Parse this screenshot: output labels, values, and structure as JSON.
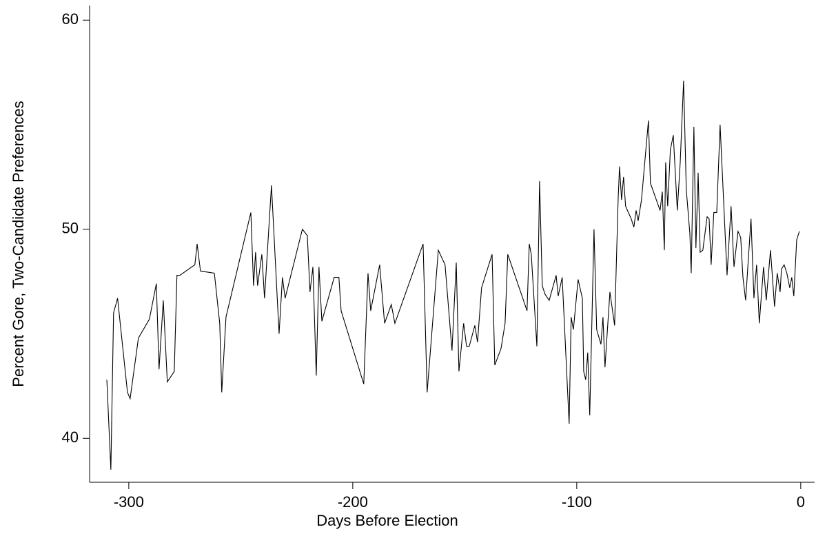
{
  "chart_data": {
    "type": "line",
    "xlabel": "Days Before Election",
    "ylabel": "Percent Gore, Two-Candidate Preferences",
    "xlim": [
      -317.5,
      6.2
    ],
    "ylim": [
      37.9,
      60.7
    ],
    "xticks": [
      -300,
      -200,
      -100,
      0
    ],
    "yticks": [
      40,
      50,
      60
    ],
    "x": [
      -309.8,
      -308,
      -306.8,
      -305,
      -300.6,
      -299.4,
      -295.7,
      -290.8,
      -287.7,
      -286.5,
      -284.6,
      -282.8,
      -279.7,
      -278.5,
      -277.2,
      -270.5,
      -269.5,
      -268,
      -261.8,
      -259.4,
      -258.5,
      -256.6,
      -245.5,
      -244.3,
      -243.4,
      -242.5,
      -240.6,
      -239.4,
      -236.3,
      -232.9,
      -231.4,
      -230.2,
      -222.5,
      -220.3,
      -219.1,
      -217.8,
      -216.3,
      -215.1,
      -213.8,
      -208.3,
      -206.2,
      -205.2,
      -195.1,
      -193.2,
      -192,
      -188,
      -185.8,
      -182.8,
      -181.2,
      -168.6,
      -166.8,
      -161.8,
      -158.8,
      -155.7,
      -153.8,
      -152.6,
      -150.5,
      -149.2,
      -148,
      -145.5,
      -144.3,
      -142.5,
      -137.8,
      -136.6,
      -133.8,
      -132,
      -130.8,
      -122.2,
      -121.2,
      -120.3,
      -117.8,
      -116.6,
      -115.4,
      -114.2,
      -112.3,
      -109.2,
      -108.3,
      -106.5,
      -103.4,
      -102.5,
      -101.5,
      -99.4,
      -97.5,
      -96.9,
      -96,
      -95.1,
      -94.2,
      -92.3,
      -91.1,
      -89.2,
      -88.3,
      -87.4,
      -85.2,
      -83.1,
      -81.5,
      -80.9,
      -80,
      -79.1,
      -78.2,
      -75.7,
      -74.5,
      -73.5,
      -72.6,
      -71.1,
      -68,
      -67.1,
      -62.8,
      -61.8,
      -60.9,
      -60.3,
      -59.4,
      -58.2,
      -56.9,
      -55.1,
      -53.8,
      -52.3,
      -51.1,
      -49.5,
      -48.9,
      -47.7,
      -46.8,
      -45.8,
      -44.9,
      -43.7,
      -41.8,
      -40.9,
      -40,
      -38.8,
      -37.5,
      -36,
      -32.9,
      -31.1,
      -29.8,
      -28,
      -26.8,
      -25.8,
      -24.6,
      -22.2,
      -20.9,
      -19.7,
      -18.5,
      -16.6,
      -15.4,
      -13.5,
      -11.7,
      -10.5,
      -9.2,
      -8.6,
      -7.4,
      -6.2,
      -4.9,
      -4,
      -3.1,
      -1.8,
      -0.6
    ],
    "series": [
      {
        "name": "Gore",
        "color": "#000000",
        "values": [
          42.8,
          38.5,
          46.0,
          46.7,
          42.2,
          41.9,
          44.8,
          45.7,
          47.4,
          43.3,
          46.6,
          42.7,
          43.2,
          47.8,
          47.8,
          48.3,
          49.3,
          48.0,
          47.9,
          45.5,
          42.2,
          45.8,
          50.8,
          47.3,
          48.9,
          47.3,
          48.8,
          46.7,
          52.1,
          45.0,
          47.7,
          46.7,
          50.0,
          49.7,
          47.0,
          48.2,
          43.0,
          48.2,
          45.6,
          47.7,
          47.7,
          46.1,
          42.6,
          47.9,
          46.1,
          48.3,
          45.5,
          46.4,
          45.5,
          49.3,
          42.2,
          49.0,
          48.3,
          44.2,
          48.4,
          43.2,
          45.5,
          44.4,
          44.4,
          45.4,
          44.6,
          47.2,
          48.8,
          43.5,
          44.3,
          45.5,
          48.8,
          46.1,
          49.3,
          48.8,
          44.4,
          52.3,
          47.3,
          46.9,
          46.6,
          47.8,
          46.8,
          47.7,
          40.7,
          45.8,
          45.2,
          47.6,
          46.7,
          43.2,
          42.8,
          44.1,
          41.1,
          50.0,
          45.2,
          44.5,
          45.8,
          43.4,
          47.0,
          45.4,
          51.5,
          53.0,
          51.4,
          52.5,
          51.1,
          50.5,
          50.1,
          50.9,
          50.4,
          51.4,
          55.2,
          52.2,
          50.9,
          51.8,
          49.0,
          53.2,
          51.1,
          53.8,
          54.5,
          50.9,
          53.2,
          57.1,
          51.9,
          49.8,
          47.9,
          54.9,
          49.1,
          52.7,
          48.9,
          49.0,
          50.6,
          50.5,
          48.3,
          50.8,
          50.8,
          55.0,
          47.8,
          51.1,
          48.2,
          49.9,
          49.6,
          47.7,
          46.6,
          50.5,
          46.7,
          48.3,
          45.5,
          48.2,
          46.6,
          49.0,
          46.3,
          47.9,
          47.0,
          48.1,
          48.3,
          47.9,
          47.2,
          47.7,
          46.8,
          49.5,
          49.9
        ]
      }
    ]
  }
}
